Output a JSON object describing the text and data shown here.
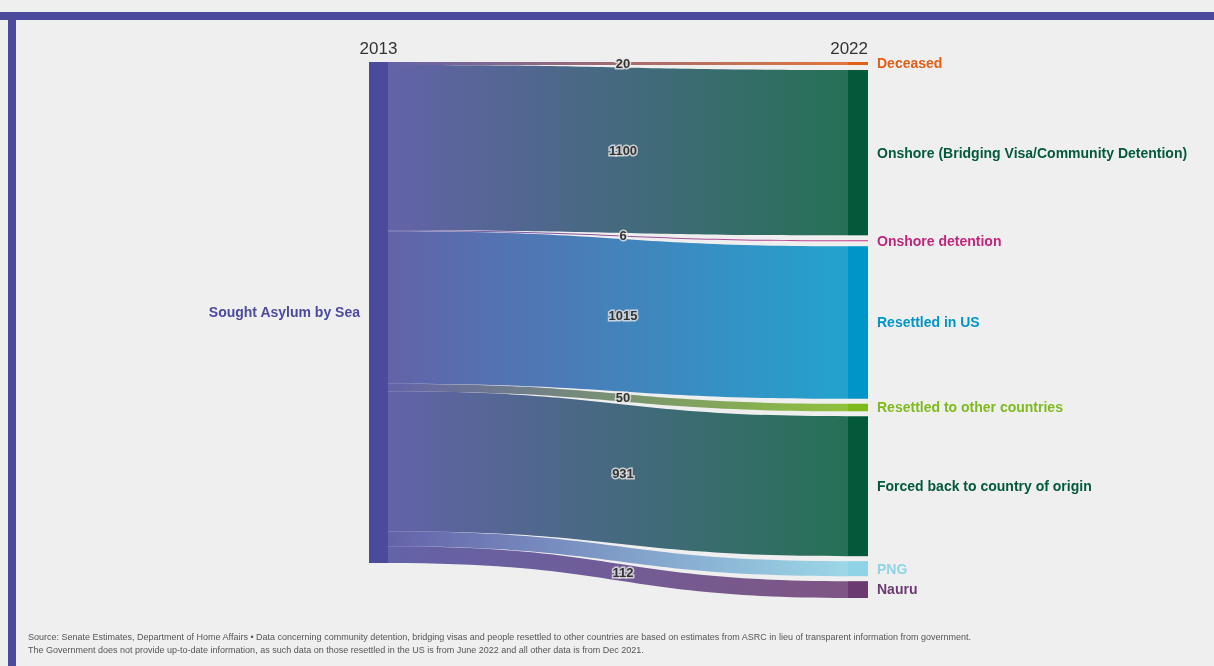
{
  "chart_data": {
    "type": "other",
    "categories": [
      "Deceased",
      "Onshore (Bridging Visa/Community Detention)",
      "Onshore detention",
      "Resettled in US",
      "Resettled to other countries",
      "Forced back to country of origin",
      "PNG",
      "Nauru"
    ],
    "series": [
      {
        "name": "Sought Asylum by Sea",
        "color": "#4b4a9c",
        "values": [
          20,
          1100,
          6,
          1015,
          50,
          931,
          null,
          112
        ]
      }
    ],
    "colors": [
      "#e0601a",
      "#035a3a",
      "#c0267e",
      "#0095c8",
      "#7fba1c",
      "#035a3a",
      "#8ed3e6",
      "#6b3a70"
    ],
    "data_labels": true,
    "annotations": [
      "2013",
      "2022",
      "Source: Senate Estimates, Department of Home Affairs • Data concerning community detention, bridging visas and people resettled to other countries are based on estimates from ASRC in lieu of transparent information from government.",
      "The Government does not provide up-to-date information, as such data on those resettled in the US is from June 2022 and all other data is from Dec 2021."
    ]
  }
}
